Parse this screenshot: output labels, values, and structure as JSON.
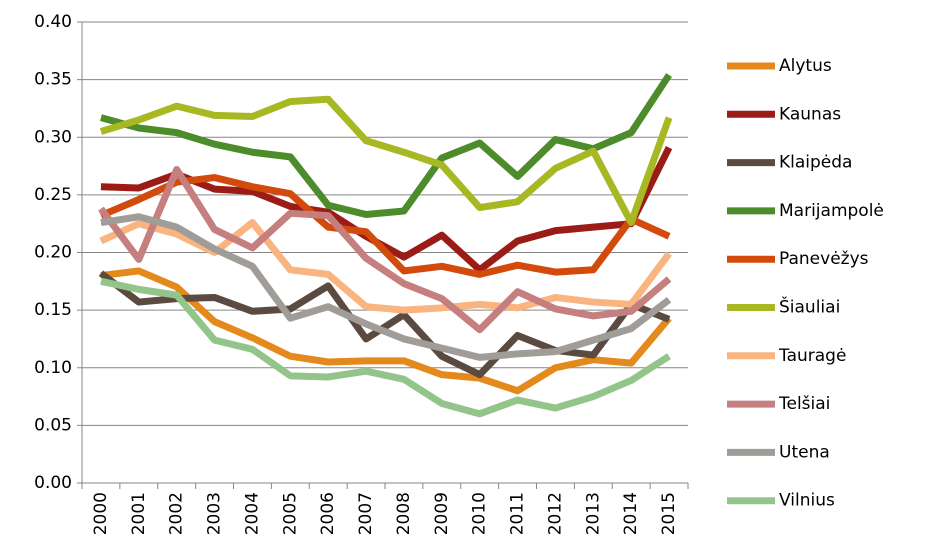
{
  "chart_data": {
    "type": "line",
    "categories": [
      "2000",
      "2001",
      "2002",
      "2003",
      "2004",
      "2005",
      "2006",
      "2007",
      "2008",
      "2009",
      "2010",
      "2011",
      "2012",
      "2013",
      "2014",
      "2015"
    ],
    "series": [
      {
        "name": "Alytus",
        "color": "#e48a1c",
        "values": [
          0.18,
          0.184,
          0.17,
          0.14,
          0.126,
          0.11,
          0.105,
          0.106,
          0.106,
          0.094,
          0.091,
          0.08,
          0.1,
          0.107,
          0.104,
          0.143
        ]
      },
      {
        "name": "Kaunas",
        "color": "#9b1b16",
        "values": [
          0.257,
          0.256,
          0.268,
          0.255,
          0.253,
          0.24,
          0.235,
          0.214,
          0.196,
          0.215,
          0.185,
          0.21,
          0.219,
          0.222,
          0.225,
          0.291
        ]
      },
      {
        "name": "Klaipėda",
        "color": "#5a4a3f",
        "values": [
          0.182,
          0.157,
          0.16,
          0.161,
          0.149,
          0.151,
          0.171,
          0.125,
          0.146,
          0.11,
          0.094,
          0.128,
          0.115,
          0.111,
          0.155,
          0.142
        ]
      },
      {
        "name": "Marijampolė",
        "color": "#4c8c2b",
        "values": [
          0.317,
          0.308,
          0.304,
          0.294,
          0.287,
          0.283,
          0.241,
          0.233,
          0.236,
          0.282,
          0.295,
          0.266,
          0.298,
          0.29,
          0.304,
          0.354
        ]
      },
      {
        "name": "Panevėžys",
        "color": "#d24a0c",
        "values": [
          0.232,
          0.246,
          0.261,
          0.265,
          0.257,
          0.251,
          0.222,
          0.218,
          0.184,
          0.188,
          0.181,
          0.189,
          0.183,
          0.185,
          0.229,
          0.214
        ]
      },
      {
        "name": "Šiauliai",
        "color": "#a8b822",
        "values": [
          0.305,
          0.315,
          0.327,
          0.319,
          0.318,
          0.331,
          0.333,
          0.297,
          0.287,
          0.276,
          0.239,
          0.244,
          0.273,
          0.288,
          0.226,
          0.317
        ]
      },
      {
        "name": "Tauragė",
        "color": "#f9b47f",
        "values": [
          0.21,
          0.225,
          0.216,
          0.2,
          0.226,
          0.185,
          0.181,
          0.153,
          0.15,
          0.152,
          0.155,
          0.152,
          0.161,
          0.157,
          0.155,
          0.199
        ]
      },
      {
        "name": "Telšiai",
        "color": "#c57f7f",
        "values": [
          0.238,
          0.194,
          0.272,
          0.22,
          0.204,
          0.234,
          0.232,
          0.195,
          0.173,
          0.16,
          0.133,
          0.166,
          0.151,
          0.145,
          0.149,
          0.177
        ]
      },
      {
        "name": "Utena",
        "color": "#a09c98",
        "values": [
          0.226,
          0.231,
          0.222,
          0.203,
          0.188,
          0.143,
          0.153,
          0.138,
          0.125,
          0.117,
          0.109,
          0.112,
          0.114,
          0.124,
          0.134,
          0.159
        ]
      },
      {
        "name": "Vilnius",
        "color": "#93c58b",
        "values": [
          0.175,
          0.168,
          0.163,
          0.124,
          0.116,
          0.093,
          0.092,
          0.097,
          0.09,
          0.069,
          0.06,
          0.072,
          0.065,
          0.075,
          0.089,
          0.11
        ]
      }
    ],
    "ylim": [
      0,
      0.4
    ],
    "yticks": [
      {
        "value": 0,
        "label": "0.00"
      },
      0.05,
      {
        "value": 0.1,
        "label": "0.10"
      },
      0.15,
      {
        "value": 0.2,
        "label": "0.20"
      },
      0.25,
      {
        "value": 0.3,
        "label": "0.30"
      },
      0.35,
      {
        "value": 0.4,
        "label": "0.40"
      }
    ],
    "grid": true,
    "legend": "right"
  }
}
